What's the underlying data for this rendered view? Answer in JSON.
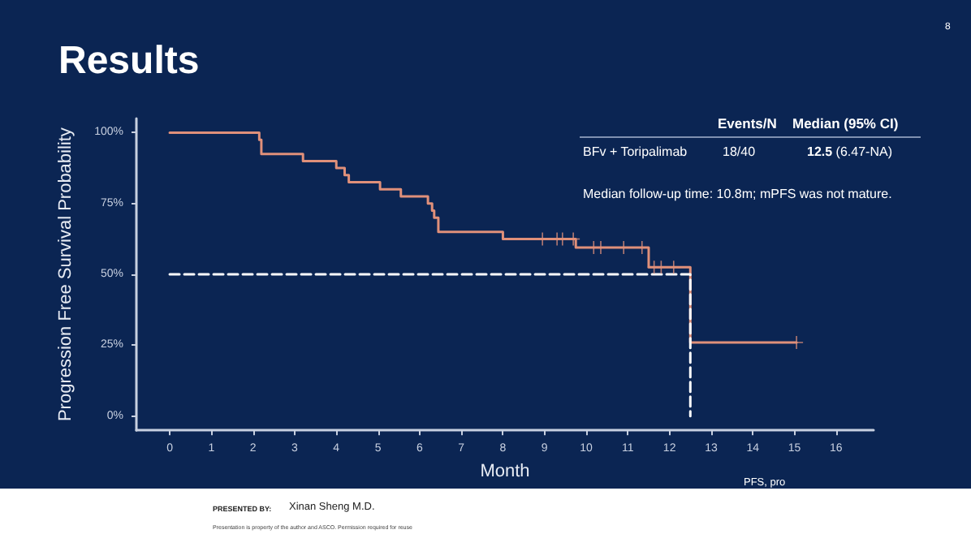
{
  "chart_data": {
    "type": "step",
    "title": "Results",
    "xlabel": "Month",
    "ylabel": "Progression Free Survival Probability",
    "xlim": [
      -0.8,
      16.9
    ],
    "xticks": [
      0,
      1,
      2,
      3,
      4,
      5,
      6,
      7,
      8,
      9,
      10,
      11,
      12,
      13,
      14,
      15,
      16
    ],
    "ylim": [
      -5,
      105
    ],
    "yticks": [
      {
        "value": 0,
        "label": "0%"
      },
      {
        "value": 25,
        "label": "25%"
      },
      {
        "value": 50,
        "label": "50%"
      },
      {
        "value": 75,
        "label": "75%"
      },
      {
        "value": 100,
        "label": "100%"
      }
    ],
    "grid": false,
    "series": [
      {
        "color": "#e0907a",
        "marker": "none",
        "x": [
          0,
          2.15,
          2.2,
          3.2,
          4.0,
          4.2,
          4.3,
          5.05,
          5.55,
          6.2,
          6.3,
          6.35,
          6.45,
          8.0,
          9.75,
          11.5,
          12.5,
          15.05
        ],
        "values": [
          100,
          97.5,
          92.5,
          90,
          87.5,
          85,
          82.5,
          80,
          77.5,
          75,
          72.5,
          70,
          65,
          62.5,
          59.5,
          52.5,
          26,
          26
        ]
      },
      {
        "type": "scatter",
        "color": "#e0907a",
        "marker": "cross",
        "x": [
          8.95,
          9.3,
          9.43,
          9.69,
          10.18,
          10.35,
          10.9,
          11.34,
          11.63,
          11.8,
          12.1,
          15.05
        ],
        "values": [
          62.5,
          62.5,
          62.5,
          62.5,
          59.5,
          59.5,
          59.5,
          59.5,
          52.5,
          52.5,
          52.5,
          26
        ]
      },
      {
        "type": "line",
        "color": "#ffffff",
        "marker": "none",
        "line_style": "dashed",
        "x": [
          0,
          12.5,
          12.5
        ],
        "values": [
          50,
          50,
          0
        ]
      }
    ],
    "annotations": [
      "Events/N",
      "Median (95% CI)",
      "BFv + Toripalimab",
      "18/40",
      "12.5 (6.47-NA)",
      "Median follow-up time: 10.8m; mPFS was not mature.",
      "PFS, pro",
      "8",
      "PRESENTED BY:",
      "Xinan Sheng M.D.",
      "Presentation is property of the author and ASCO. Permission required for reuse"
    ]
  }
}
